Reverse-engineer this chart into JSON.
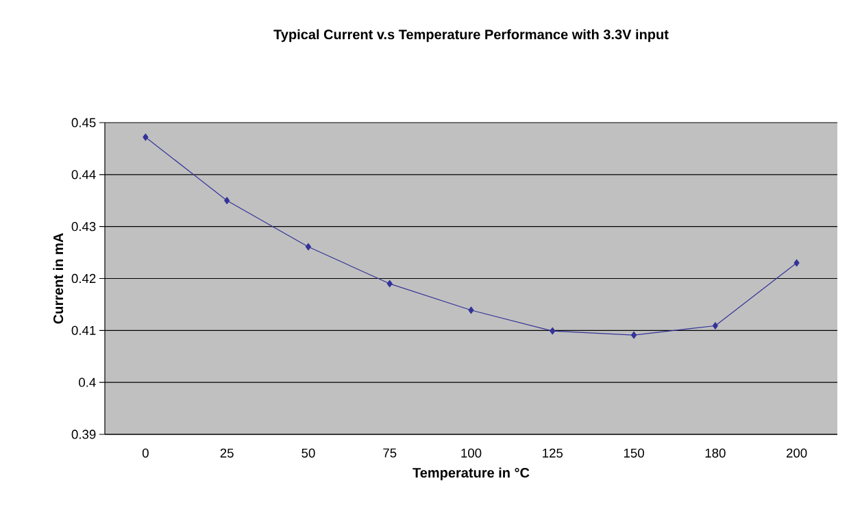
{
  "chart_data": {
    "type": "line",
    "title": "Typical Current v.s Temperature Performance with 3.3V input",
    "xlabel": "Temperature in °C",
    "ylabel": "Current in mA",
    "categories": [
      "0",
      "25",
      "50",
      "75",
      "100",
      "125",
      "150",
      "180",
      "200"
    ],
    "series": [
      {
        "color": "#333399",
        "values": [
          0.4472,
          0.435,
          0.4261,
          0.419,
          0.4139,
          0.4099,
          0.4091,
          0.4109,
          0.423
        ]
      }
    ],
    "ylim": [
      0.39,
      0.45
    ],
    "yticks": [
      0.39,
      0.4,
      0.41,
      0.42,
      0.43,
      0.44,
      0.45
    ],
    "grid": "y",
    "marker": "diamond",
    "line_style": "solid"
  }
}
